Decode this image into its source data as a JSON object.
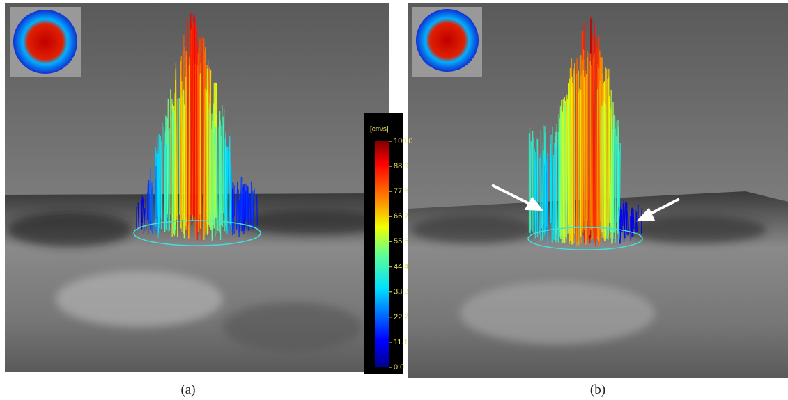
{
  "panels": [
    {
      "label": "(a)"
    },
    {
      "label": "(b)"
    }
  ],
  "colorbar": {
    "unit": "[cm/s]",
    "range": [
      0,
      100
    ],
    "ticks": [
      {
        "value": 100,
        "label": "100.0"
      },
      {
        "value": 88.9,
        "label": "88.9"
      },
      {
        "value": 77.8,
        "label": "77.8"
      },
      {
        "value": 66.7,
        "label": "66.7"
      },
      {
        "value": 55.6,
        "label": "55.6"
      },
      {
        "value": 44.4,
        "label": "44.4"
      },
      {
        "value": 33.3,
        "label": "33.3"
      },
      {
        "value": 22.2,
        "label": "22.2"
      },
      {
        "value": 11.1,
        "label": "11.1"
      },
      {
        "value": 0,
        "label": "0.0"
      }
    ]
  }
}
